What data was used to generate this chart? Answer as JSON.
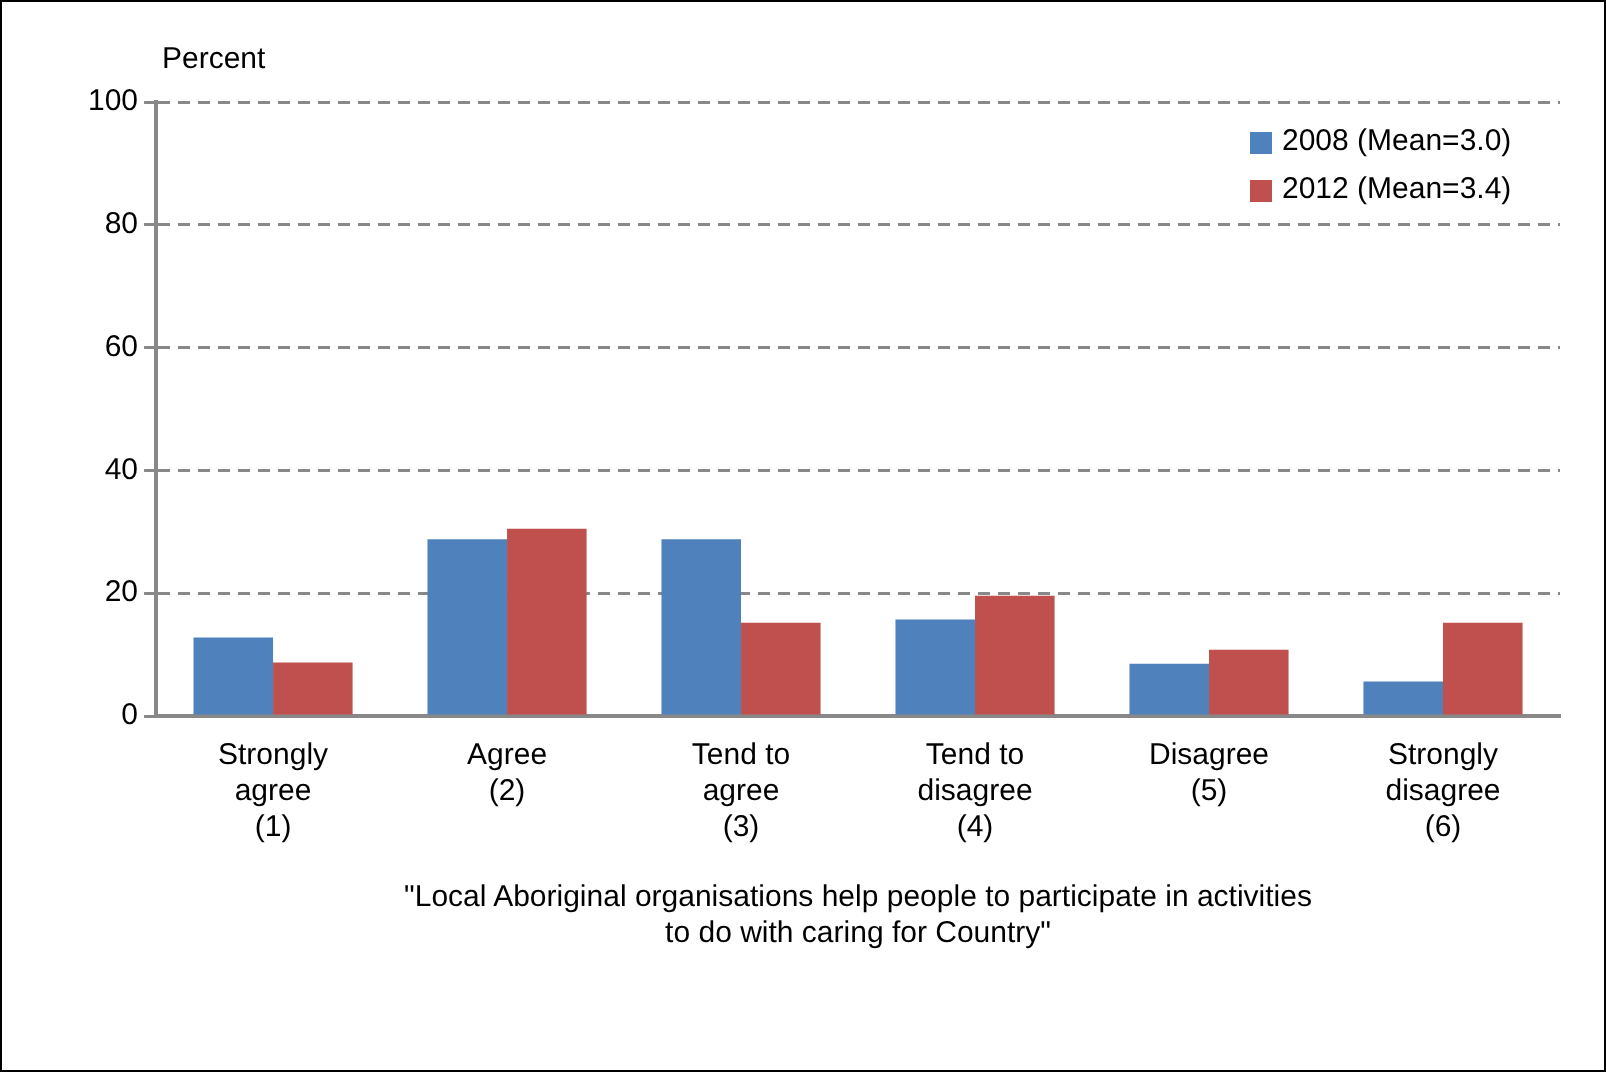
{
  "chart_data": {
    "type": "bar",
    "ylabel": "Percent",
    "xlabel": "\"Local Aboriginal organisations help people to participate in activities\nto do with caring for Country\"",
    "categories": [
      "Strongly\nagree\n(1)",
      "Agree\n(2)",
      "Tend to\nagree\n(3)",
      "Tend to\ndisagree\n(4)",
      "Disagree\n(5)",
      "Strongly\ndisagree\n(6)"
    ],
    "series": [
      {
        "name": "2008 (Mean=3.0)",
        "color": "#4f81bd",
        "values": [
          12.8,
          28.8,
          28.8,
          15.7,
          8.5,
          5.6
        ]
      },
      {
        "name": "2012 (Mean=3.4)",
        "color": "#c0504d",
        "values": [
          8.7,
          30.5,
          15.2,
          19.6,
          10.8,
          15.2
        ]
      }
    ],
    "ylim": [
      0,
      100
    ],
    "yticks": [
      0,
      20,
      40,
      60,
      80,
      100
    ],
    "grid": "y",
    "legend": "top right"
  }
}
